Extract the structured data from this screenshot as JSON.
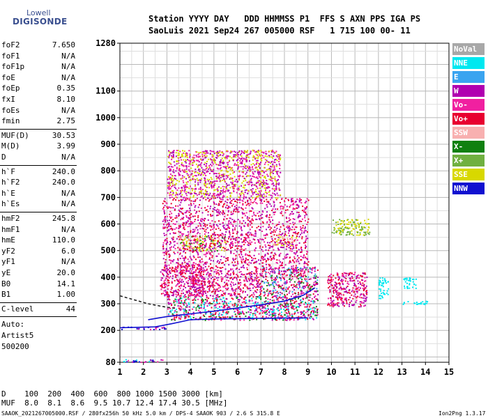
{
  "logo": {
    "top": "Lowell",
    "bottom": "DIGISONDE"
  },
  "header": {
    "line1": "Station YYYY DAY   DDD HHMMSS P1  FFS S AXN PPS IGA PS",
    "line2": "SaoLuis 2021 Sep24 267 005000 RSF   1 715 100 00- 11"
  },
  "params_group1": [
    {
      "k": "foF2",
      "v": "7.650"
    },
    {
      "k": "foF1",
      "v": "N/A"
    },
    {
      "k": "foF1p",
      "v": "N/A"
    },
    {
      "k": "foE",
      "v": "N/A"
    },
    {
      "k": "foEp",
      "v": "0.35"
    },
    {
      "k": "fxI",
      "v": "8.10"
    },
    {
      "k": "foEs",
      "v": "N/A"
    },
    {
      "k": "fmin",
      "v": "2.75"
    }
  ],
  "params_group2": [
    {
      "k": "MUF(D)",
      "v": "30.53"
    },
    {
      "k": "M(D)",
      "v": "3.99"
    },
    {
      "k": "D",
      "v": "N/A"
    }
  ],
  "params_group3": [
    {
      "k": "h`F",
      "v": "240.0"
    },
    {
      "k": "h`F2",
      "v": "240.0"
    },
    {
      "k": "h`E",
      "v": "N/A"
    },
    {
      "k": "h`Es",
      "v": "N/A"
    }
  ],
  "params_group4": [
    {
      "k": "hmF2",
      "v": "245.8"
    },
    {
      "k": "hmF1",
      "v": "N/A"
    },
    {
      "k": "hmE",
      "v": "110.0"
    },
    {
      "k": "yF2",
      "v": "6.0"
    },
    {
      "k": "yF1",
      "v": "N/A"
    },
    {
      "k": "yE",
      "v": "20.0"
    },
    {
      "k": "B0",
      "v": "14.1"
    },
    {
      "k": "B1",
      "v": "1.00"
    }
  ],
  "clevel": {
    "k": "C-level",
    "v": "44"
  },
  "auto": {
    "line1": "Auto:",
    "line2": "Artist5",
    "line3": "500200"
  },
  "legend": [
    {
      "label": "NoVal",
      "color": "#a8a8a8"
    },
    {
      "label": "NNE",
      "color": "#00e8f0"
    },
    {
      "label": "E",
      "color": "#3aa4f0"
    },
    {
      "label": "W",
      "color": "#b000b0"
    },
    {
      "label": "Vo-",
      "color": "#f020a0"
    },
    {
      "label": "Vo+",
      "color": "#e80030"
    },
    {
      "label": "SSW",
      "color": "#f8b0b0"
    },
    {
      "label": "X-",
      "color": "#108010"
    },
    {
      "label": "X+",
      "color": "#70b040"
    },
    {
      "label": "SSE",
      "color": "#d8d800"
    },
    {
      "label": "NNW",
      "color": "#1010d0"
    }
  ],
  "bottom_table": {
    "row1": "D    100  200  400  600  800 1000 1500 3000 [km]",
    "row2": "MUF  8.0  8.1  8.6  9.5 10.7 12.4 17.4 30.5 [MHz]"
  },
  "footer": {
    "left": "SAAOK_2021267005000.RSF / 280fx256h 50 kHz 5.0 km / DPS-4 SAAOK 903 / 2.6 S 315.8 E",
    "right": "Ion2Png 1.3.17"
  },
  "chart_data": {
    "type": "scatter",
    "title": "",
    "xlabel": "",
    "ylabel": "",
    "xlim": [
      1,
      15
    ],
    "ylim": [
      80,
      1280
    ],
    "x_ticks": [
      1,
      2,
      3,
      4,
      5,
      6,
      7,
      8,
      9,
      10,
      11,
      12,
      13,
      14,
      15
    ],
    "y_ticks": [
      80,
      200,
      300,
      400,
      500,
      600,
      700,
      800,
      900,
      1000,
      1100,
      1280
    ],
    "grid": true,
    "x_tick_labels": [
      "1",
      "2",
      "3",
      "4",
      "5",
      "6",
      "7",
      "8",
      "9",
      "10",
      "11",
      "12",
      "13",
      "14",
      "15"
    ],
    "y_tick_labels": [
      "80",
      "200",
      "300",
      "400",
      "500",
      "600",
      "700",
      "800",
      "900",
      "1000",
      "1100",
      "1280"
    ],
    "traces": [
      {
        "name": "profile",
        "color": "#1010d0",
        "points": [
          [
            2.2,
            240
          ],
          [
            3.0,
            252
          ],
          [
            4.0,
            262
          ],
          [
            5.0,
            272
          ],
          [
            6.0,
            284
          ],
          [
            7.0,
            296
          ],
          [
            8.0,
            310
          ],
          [
            8.8,
            332
          ],
          [
            9.3,
            360
          ]
        ]
      },
      {
        "name": "lower_trace",
        "color": "#1010d0",
        "points": [
          [
            1.0,
            210
          ],
          [
            2.5,
            213
          ],
          [
            3.2,
            225
          ],
          [
            4.0,
            240
          ],
          [
            5.0,
            243
          ],
          [
            6.0,
            244
          ],
          [
            7.0,
            245
          ],
          [
            8.0,
            246
          ],
          [
            9.0,
            247
          ]
        ]
      },
      {
        "name": "dashed_trace",
        "color": "#202020",
        "points": [
          [
            1.0,
            330
          ],
          [
            1.6,
            315
          ],
          [
            2.2,
            300
          ],
          [
            2.8,
            290
          ],
          [
            3.4,
            282
          ]
        ]
      }
    ],
    "echo_regions": [
      {
        "x": [
          3.0,
          9.4
        ],
        "y": [
          240,
          330
        ],
        "colors": [
          "#e80030",
          "#f020a0",
          "#b000b0",
          "#108010",
          "#00e8f0"
        ]
      },
      {
        "x": [
          2.7,
          4.6
        ],
        "y": [
          330,
          450
        ],
        "colors": [
          "#f020a0",
          "#b000b0",
          "#e80030"
        ]
      },
      {
        "x": [
          7.0,
          9.4
        ],
        "y": [
          330,
          440
        ],
        "colors": [
          "#e80030",
          "#f020a0",
          "#3aa4f0",
          "#108010",
          "#b000b0"
        ]
      },
      {
        "x": [
          4.0,
          7.0
        ],
        "y": [
          330,
          420
        ],
        "colors": [
          "#b000b0",
          "#f020a0",
          "#e80030"
        ]
      },
      {
        "x": [
          9.8,
          11.5
        ],
        "y": [
          290,
          420
        ],
        "colors": [
          "#e80030",
          "#f020a0",
          "#b000b0"
        ]
      },
      {
        "x": [
          3.5,
          5.5
        ],
        "y": [
          500,
          560
        ],
        "colors": [
          "#d8d800",
          "#f8b0b0",
          "#108010"
        ]
      },
      {
        "x": [
          7.5,
          8.5
        ],
        "y": [
          520,
          560
        ],
        "colors": [
          "#d8d800",
          "#f8b0b0"
        ]
      },
      {
        "x": [
          10.0,
          11.6
        ],
        "y": [
          560,
          620
        ],
        "colors": [
          "#d8d800",
          "#70b040"
        ]
      },
      {
        "x": [
          2.8,
          9.0
        ],
        "y": [
          420,
          700
        ],
        "colors": [
          "#b000b0",
          "#f020a0",
          "#e80030"
        ]
      },
      {
        "x": [
          3.0,
          7.8
        ],
        "y": [
          700,
          880
        ],
        "colors": [
          "#b000b0",
          "#f020a0",
          "#d8d800"
        ]
      },
      {
        "x": [
          1.1,
          3.0
        ],
        "y": [
          82,
          92
        ],
        "colors": [
          "#b000b0",
          "#00e8f0",
          "#1010d0",
          "#f020a0"
        ]
      },
      {
        "x": [
          1.0,
          3.0
        ],
        "y": [
          205,
          215
        ],
        "colors": [
          "#1010d0",
          "#b000b0",
          "#f020a0"
        ]
      },
      {
        "x": [
          12.0,
          12.4
        ],
        "y": [
          320,
          400
        ],
        "colors": [
          "#00e8f0"
        ]
      },
      {
        "x": [
          13.0,
          14.1
        ],
        "y": [
          300,
          312
        ],
        "colors": [
          "#00e8f0"
        ]
      },
      {
        "x": [
          13.0,
          13.6
        ],
        "y": [
          360,
          400
        ],
        "colors": [
          "#00e8f0"
        ]
      }
    ]
  }
}
